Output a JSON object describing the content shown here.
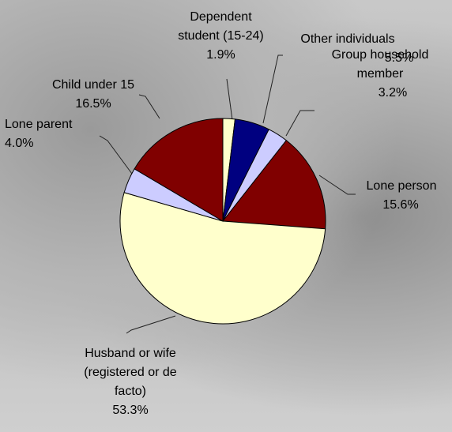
{
  "chart_data": {
    "type": "pie",
    "categories": [
      "Dependent student (15-24)",
      "Other individuals",
      "Group household member",
      "Lone person",
      "Husband or wife (registered or de facto)",
      "Lone parent",
      "Child under 15"
    ],
    "values": [
      1.9,
      5.5,
      3.2,
      15.6,
      53.3,
      4.0,
      16.5
    ],
    "value_labels": [
      "1.9%",
      "5.5%",
      "3.2%",
      "15.6%",
      "53.3%",
      "4.0%",
      "16.5%"
    ],
    "colors": [
      "#ffffcc",
      "#000080",
      "#ccccff",
      "#800000",
      "#ffffcc",
      "#ccccff",
      "#800000"
    ]
  }
}
